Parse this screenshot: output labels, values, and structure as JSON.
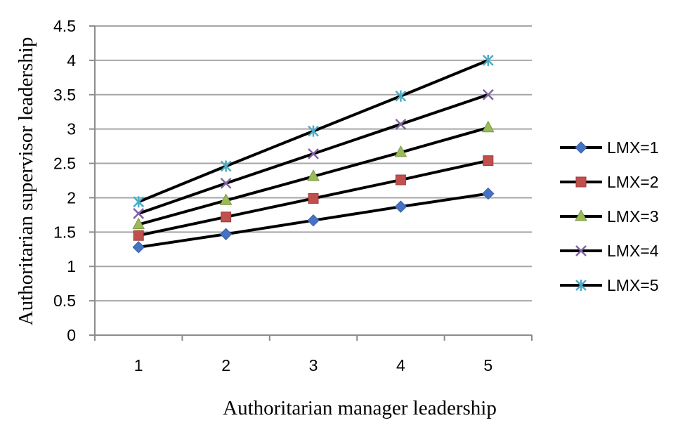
{
  "chart_data": {
    "type": "line",
    "title": "",
    "xlabel": "Authoritarian manager leadership",
    "ylabel": "Authoritarian supervisor leadership",
    "categories": [
      "1",
      "2",
      "3",
      "4",
      "5"
    ],
    "ylim": [
      0,
      4.5
    ],
    "yticks": [
      "0",
      "0.5",
      "1",
      "1.5",
      "2",
      "2.5",
      "3",
      "3.5",
      "4",
      "4.5"
    ],
    "grid": true,
    "legend_position": "right",
    "series": [
      {
        "name": "LMX=1",
        "values": [
          1.28,
          1.47,
          1.67,
          1.87,
          2.06
        ],
        "marker": "diamond",
        "color": "#4472C4"
      },
      {
        "name": "LMX=2",
        "values": [
          1.45,
          1.72,
          1.99,
          2.26,
          2.54
        ],
        "marker": "square",
        "color": "#C0504D"
      },
      {
        "name": "LMX=3",
        "values": [
          1.61,
          1.96,
          2.31,
          2.66,
          3.02
        ],
        "marker": "triangle",
        "color": "#9BBB59"
      },
      {
        "name": "LMX=4",
        "values": [
          1.77,
          2.21,
          2.64,
          3.07,
          3.5
        ],
        "marker": "x",
        "color": "#8064A2"
      },
      {
        "name": "LMX=5",
        "values": [
          1.94,
          2.46,
          2.97,
          3.48,
          4.0
        ],
        "marker": "star",
        "color": "#4BACC6"
      }
    ]
  }
}
